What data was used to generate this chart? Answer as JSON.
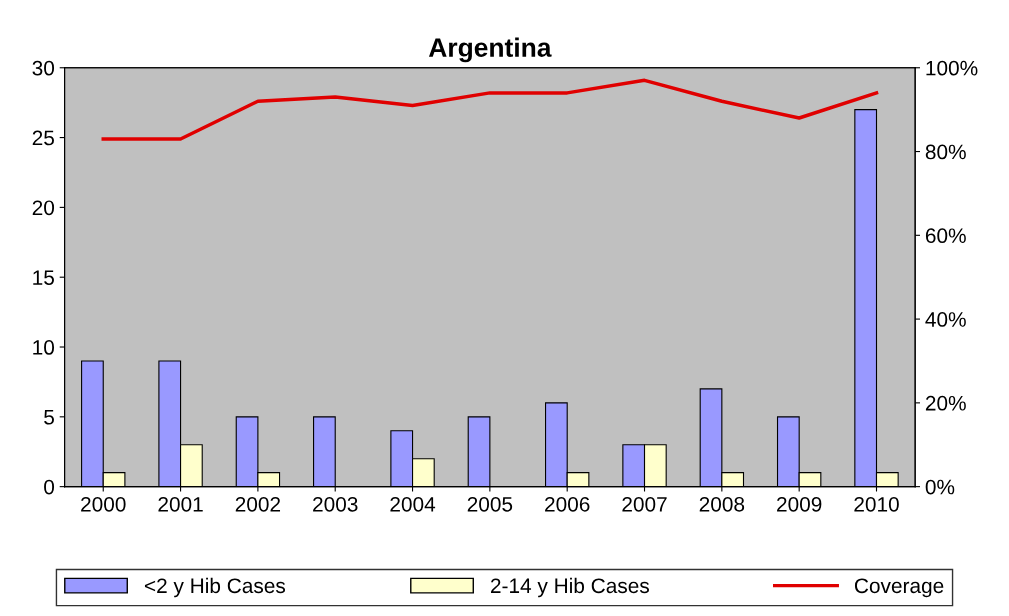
{
  "chart_data": {
    "type": "bar",
    "title": "Argentina",
    "categories": [
      "2000",
      "2001",
      "2002",
      "2003",
      "2004",
      "2005",
      "2006",
      "2007",
      "2008",
      "2009",
      "2010"
    ],
    "series": [
      {
        "name": "<2 y Hib Cases",
        "color": "#9999ff",
        "values": [
          9,
          9,
          5,
          5,
          4,
          5,
          6,
          3,
          7,
          5,
          27
        ]
      },
      {
        "name": "2-14 y Hib Cases",
        "color": "#ffffcc",
        "values": [
          1,
          3,
          1,
          null,
          2,
          null,
          1,
          3,
          1,
          1,
          1
        ]
      },
      {
        "name": "Coverage",
        "type": "line",
        "axis": "y2",
        "color": "#e00000",
        "values": [
          83,
          83,
          92,
          93,
          91,
          94,
          94,
          97,
          92,
          88,
          94
        ]
      }
    ],
    "ylim": [
      0,
      30
    ],
    "yticks": [
      0,
      5,
      10,
      15,
      20,
      25,
      30
    ],
    "y2lim": [
      0,
      100
    ],
    "y2ticks": [
      {
        "value": 0,
        "label": "0%"
      },
      {
        "value": 20,
        "label": "20%"
      },
      {
        "value": 40,
        "label": "40%"
      },
      {
        "value": 60,
        "label": "60%"
      },
      {
        "value": 80,
        "label": "80%"
      },
      {
        "value": 100,
        "label": "100%"
      }
    ],
    "grid": false,
    "legend": "bottom"
  }
}
